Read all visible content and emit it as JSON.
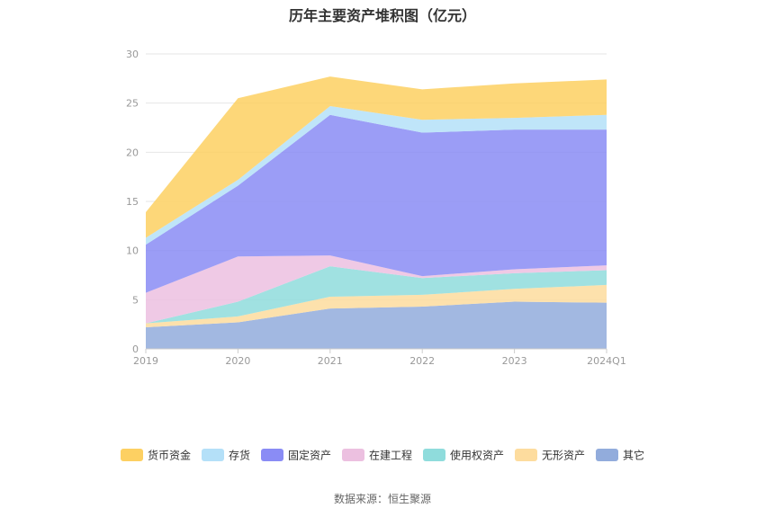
{
  "title": "历年主要资产堆积图（亿元）",
  "source": "数据来源：恒生聚源",
  "chart_data": {
    "type": "area",
    "stacked": true,
    "title": "历年主要资产堆积图（亿元）",
    "x": [
      "2019",
      "2020",
      "2021",
      "2022",
      "2023",
      "2024Q1"
    ],
    "ylim": [
      0,
      30
    ],
    "yticks": [
      0,
      5,
      10,
      15,
      20,
      25,
      30
    ],
    "grid": true,
    "legend_position": "bottom",
    "series": [
      {
        "name": "其它",
        "color": "#92acdc",
        "values": [
          2.2,
          2.7,
          4.1,
          4.3,
          4.8,
          4.7
        ]
      },
      {
        "name": "无形资产",
        "color": "#fddc9e",
        "values": [
          0.4,
          0.6,
          1.2,
          1.2,
          1.3,
          1.8
        ]
      },
      {
        "name": "使用权资产",
        "color": "#8fdcdc",
        "values": [
          0.0,
          1.5,
          3.1,
          1.7,
          1.6,
          1.5
        ]
      },
      {
        "name": "在建工程",
        "color": "#ecc0e0",
        "values": [
          3.1,
          4.6,
          1.1,
          0.2,
          0.4,
          0.5
        ]
      },
      {
        "name": "固定资产",
        "color": "#8a8cf5",
        "values": [
          4.9,
          7.2,
          14.3,
          14.6,
          14.2,
          13.8
        ]
      },
      {
        "name": "存货",
        "color": "#b4e0f8",
        "values": [
          0.7,
          0.6,
          0.9,
          1.3,
          1.2,
          1.5
        ]
      },
      {
        "name": "货币资金",
        "color": "#fdd062",
        "values": [
          2.6,
          8.3,
          3.0,
          3.1,
          3.5,
          3.6
        ]
      }
    ],
    "legend_order": [
      "货币资金",
      "存货",
      "固定资产",
      "在建工程",
      "使用权资产",
      "无形资产",
      "其它"
    ]
  }
}
